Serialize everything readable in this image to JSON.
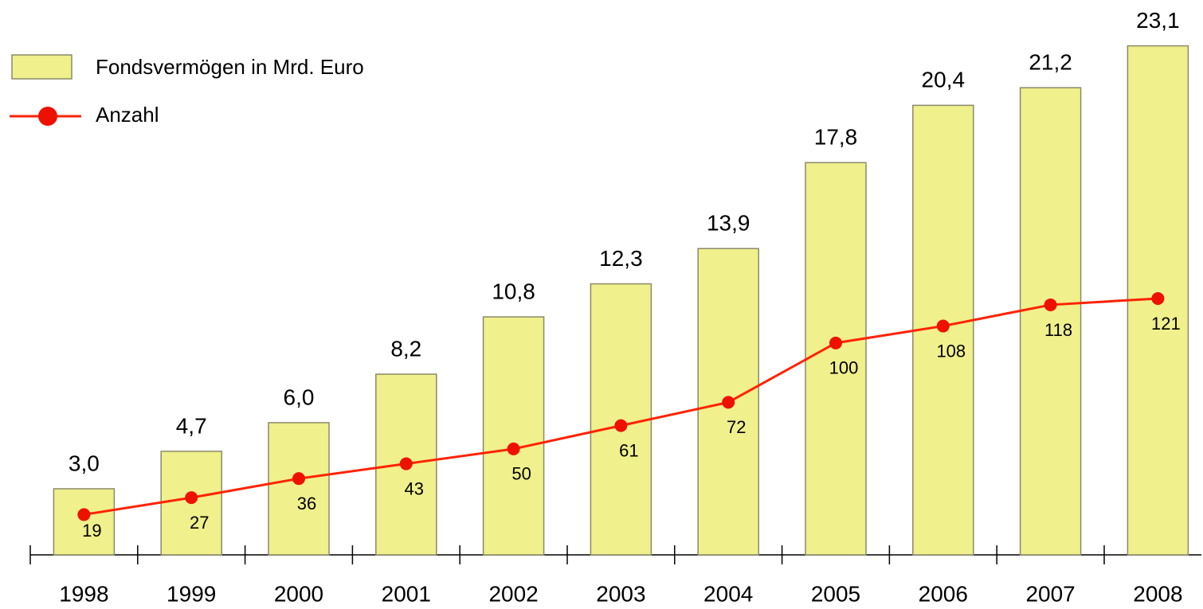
{
  "chart_data": {
    "type": "bar",
    "categories": [
      "1998",
      "1999",
      "2000",
      "2001",
      "2002",
      "2003",
      "2004",
      "2005",
      "2006",
      "2007",
      "2008"
    ],
    "series": [
      {
        "name": "Fondsvermögen in Mrd. Euro",
        "type": "bar",
        "color": "#f0f08c",
        "values": [
          3.0,
          4.7,
          6.0,
          8.2,
          10.8,
          12.3,
          13.9,
          17.8,
          20.4,
          21.2,
          23.1
        ],
        "value_labels": [
          "3,0",
          "4,7",
          "6,0",
          "8,2",
          "10,8",
          "12,3",
          "13,9",
          "17,8",
          "20,4",
          "21,2",
          "23,1"
        ]
      },
      {
        "name": "Anzahl",
        "type": "line",
        "axis": "y2",
        "color": "#ff2200",
        "values": [
          19,
          27,
          36,
          43,
          50,
          61,
          72,
          100,
          108,
          118,
          121
        ]
      }
    ],
    "ylim": [
      0,
      25
    ],
    "y2lim": [
      0,
      260
    ],
    "legend": "top-left"
  }
}
